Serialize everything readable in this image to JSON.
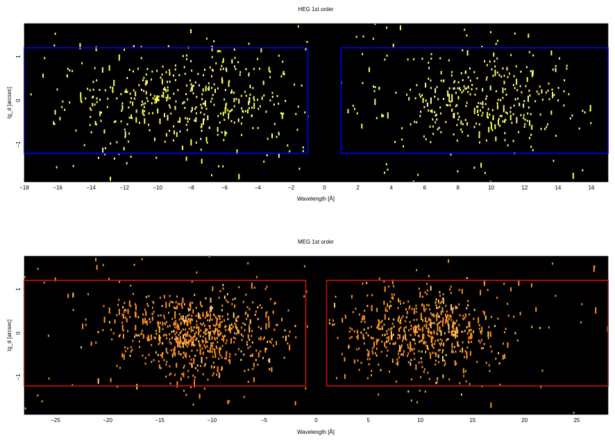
{
  "chart_data": [
    {
      "type": "heatmap",
      "title": "HEG 1st order",
      "xlabel": "Wavelength [Å]",
      "ylabel": "tg_d [arcsec]",
      "xlim": [
        -18,
        17
      ],
      "ylim": [
        -1.85,
        1.75
      ],
      "xticks": [
        -18,
        -16,
        -14,
        -12,
        -10,
        -8,
        -6,
        -4,
        -2,
        0,
        2,
        4,
        6,
        8,
        10,
        12,
        14,
        16
      ],
      "xtick_labels": [
        "−18",
        "−16",
        "−14",
        "−12",
        "−10",
        "−8",
        "−6",
        "−4",
        "−2",
        "0",
        "2",
        "4",
        "6",
        "8",
        "10",
        "12",
        "14",
        "16"
      ],
      "yticks": [
        -1,
        0,
        1
      ],
      "ytick_labels": [
        "−1",
        "0",
        "1"
      ],
      "background_color": "#000000",
      "event_color": "#ffff55",
      "event_color_dense": "#ffffaa",
      "region_color": "#0000ff",
      "regions": [
        {
          "x": [
            -18,
            -1
          ],
          "y": [
            -1.2,
            1.2
          ]
        },
        {
          "x": [
            1,
            17
          ],
          "y": [
            -1.2,
            1.2
          ]
        }
      ],
      "source_clusters": [
        {
          "center": -8.5,
          "spread": 3.8,
          "xmin": -18,
          "xmax": -1,
          "count": 380
        },
        {
          "center": 9.5,
          "spread": 3.0,
          "xmin": 1,
          "xmax": 16,
          "count": 300
        }
      ],
      "source_width": 0.55,
      "background_events": 130
    },
    {
      "type": "heatmap",
      "title": "MEG 1st order",
      "xlabel": "Wavelength [Å]",
      "ylabel": "tg_d [arcsec]",
      "xlim": [
        -28,
        28
      ],
      "ylim": [
        -1.85,
        1.75
      ],
      "xticks": [
        -25,
        -20,
        -15,
        -10,
        -5,
        0,
        5,
        10,
        15,
        20,
        25
      ],
      "xtick_labels": [
        "−25",
        "−20",
        "−15",
        "−10",
        "−5",
        "0",
        "5",
        "10",
        "15",
        "20",
        "25"
      ],
      "yticks": [
        -1,
        0,
        1
      ],
      "ytick_labels": [
        "−1",
        "0",
        "1"
      ],
      "background_color": "#000000",
      "event_color": "#ff9020",
      "event_color_dense": "#ffd070",
      "region_color": "#cc1111",
      "regions": [
        {
          "x": [
            -28,
            -1
          ],
          "y": [
            -1.2,
            1.2
          ]
        },
        {
          "x": [
            1,
            28
          ],
          "y": [
            -1.2,
            1.2
          ]
        }
      ],
      "source_clusters": [
        {
          "center": -11.5,
          "spread": 4.2,
          "xmin": -27,
          "xmax": -1,
          "count": 650
        },
        {
          "center": 10.0,
          "spread": 3.8,
          "xmin": 1,
          "xmax": 27,
          "count": 560
        }
      ],
      "source_width": 0.5,
      "background_events": 90
    }
  ]
}
